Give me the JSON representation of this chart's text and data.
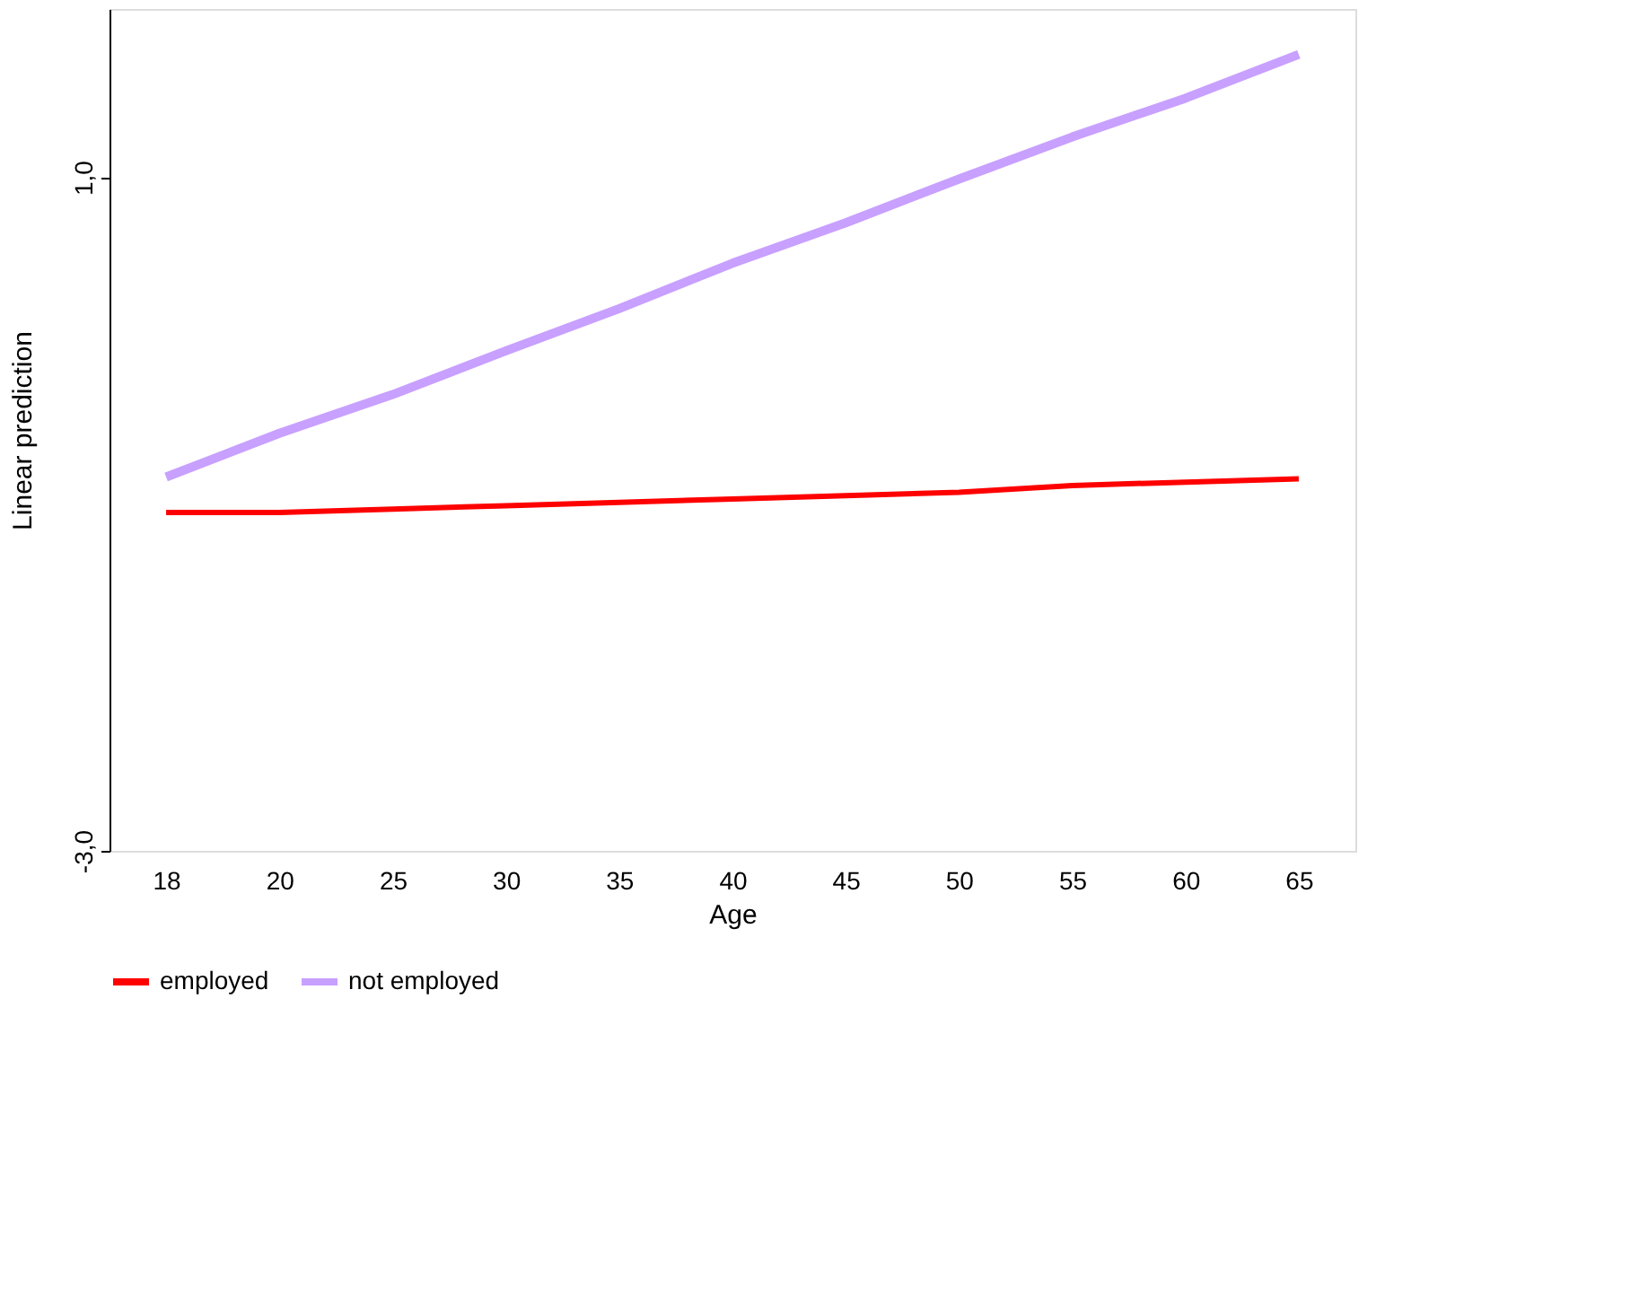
{
  "chart_data": {
    "type": "line",
    "xlabel": "Age",
    "ylabel": "Linear prediction",
    "categories": [
      "18",
      "20",
      "25",
      "30",
      "35",
      "40",
      "45",
      "50",
      "55",
      "60",
      "65"
    ],
    "ylim": [
      -3,
      2
    ],
    "yticks": [
      {
        "value": -3,
        "label": "-3,0"
      },
      {
        "value": 1,
        "label": "1,0"
      }
    ],
    "grid": false,
    "legend": "bottom",
    "series": [
      {
        "name": "employed",
        "color": "#ff0000",
        "values": [
          -0.99,
          -0.99,
          -0.97,
          -0.95,
          -0.93,
          -0.91,
          -0.89,
          -0.87,
          -0.83,
          -0.81,
          -0.79
        ]
      },
      {
        "name": "not employed",
        "color": "#c8a0ff",
        "values": [
          -0.78,
          -0.52,
          -0.29,
          -0.03,
          0.22,
          0.49,
          0.73,
          0.99,
          1.24,
          1.47,
          1.73
        ]
      }
    ]
  }
}
